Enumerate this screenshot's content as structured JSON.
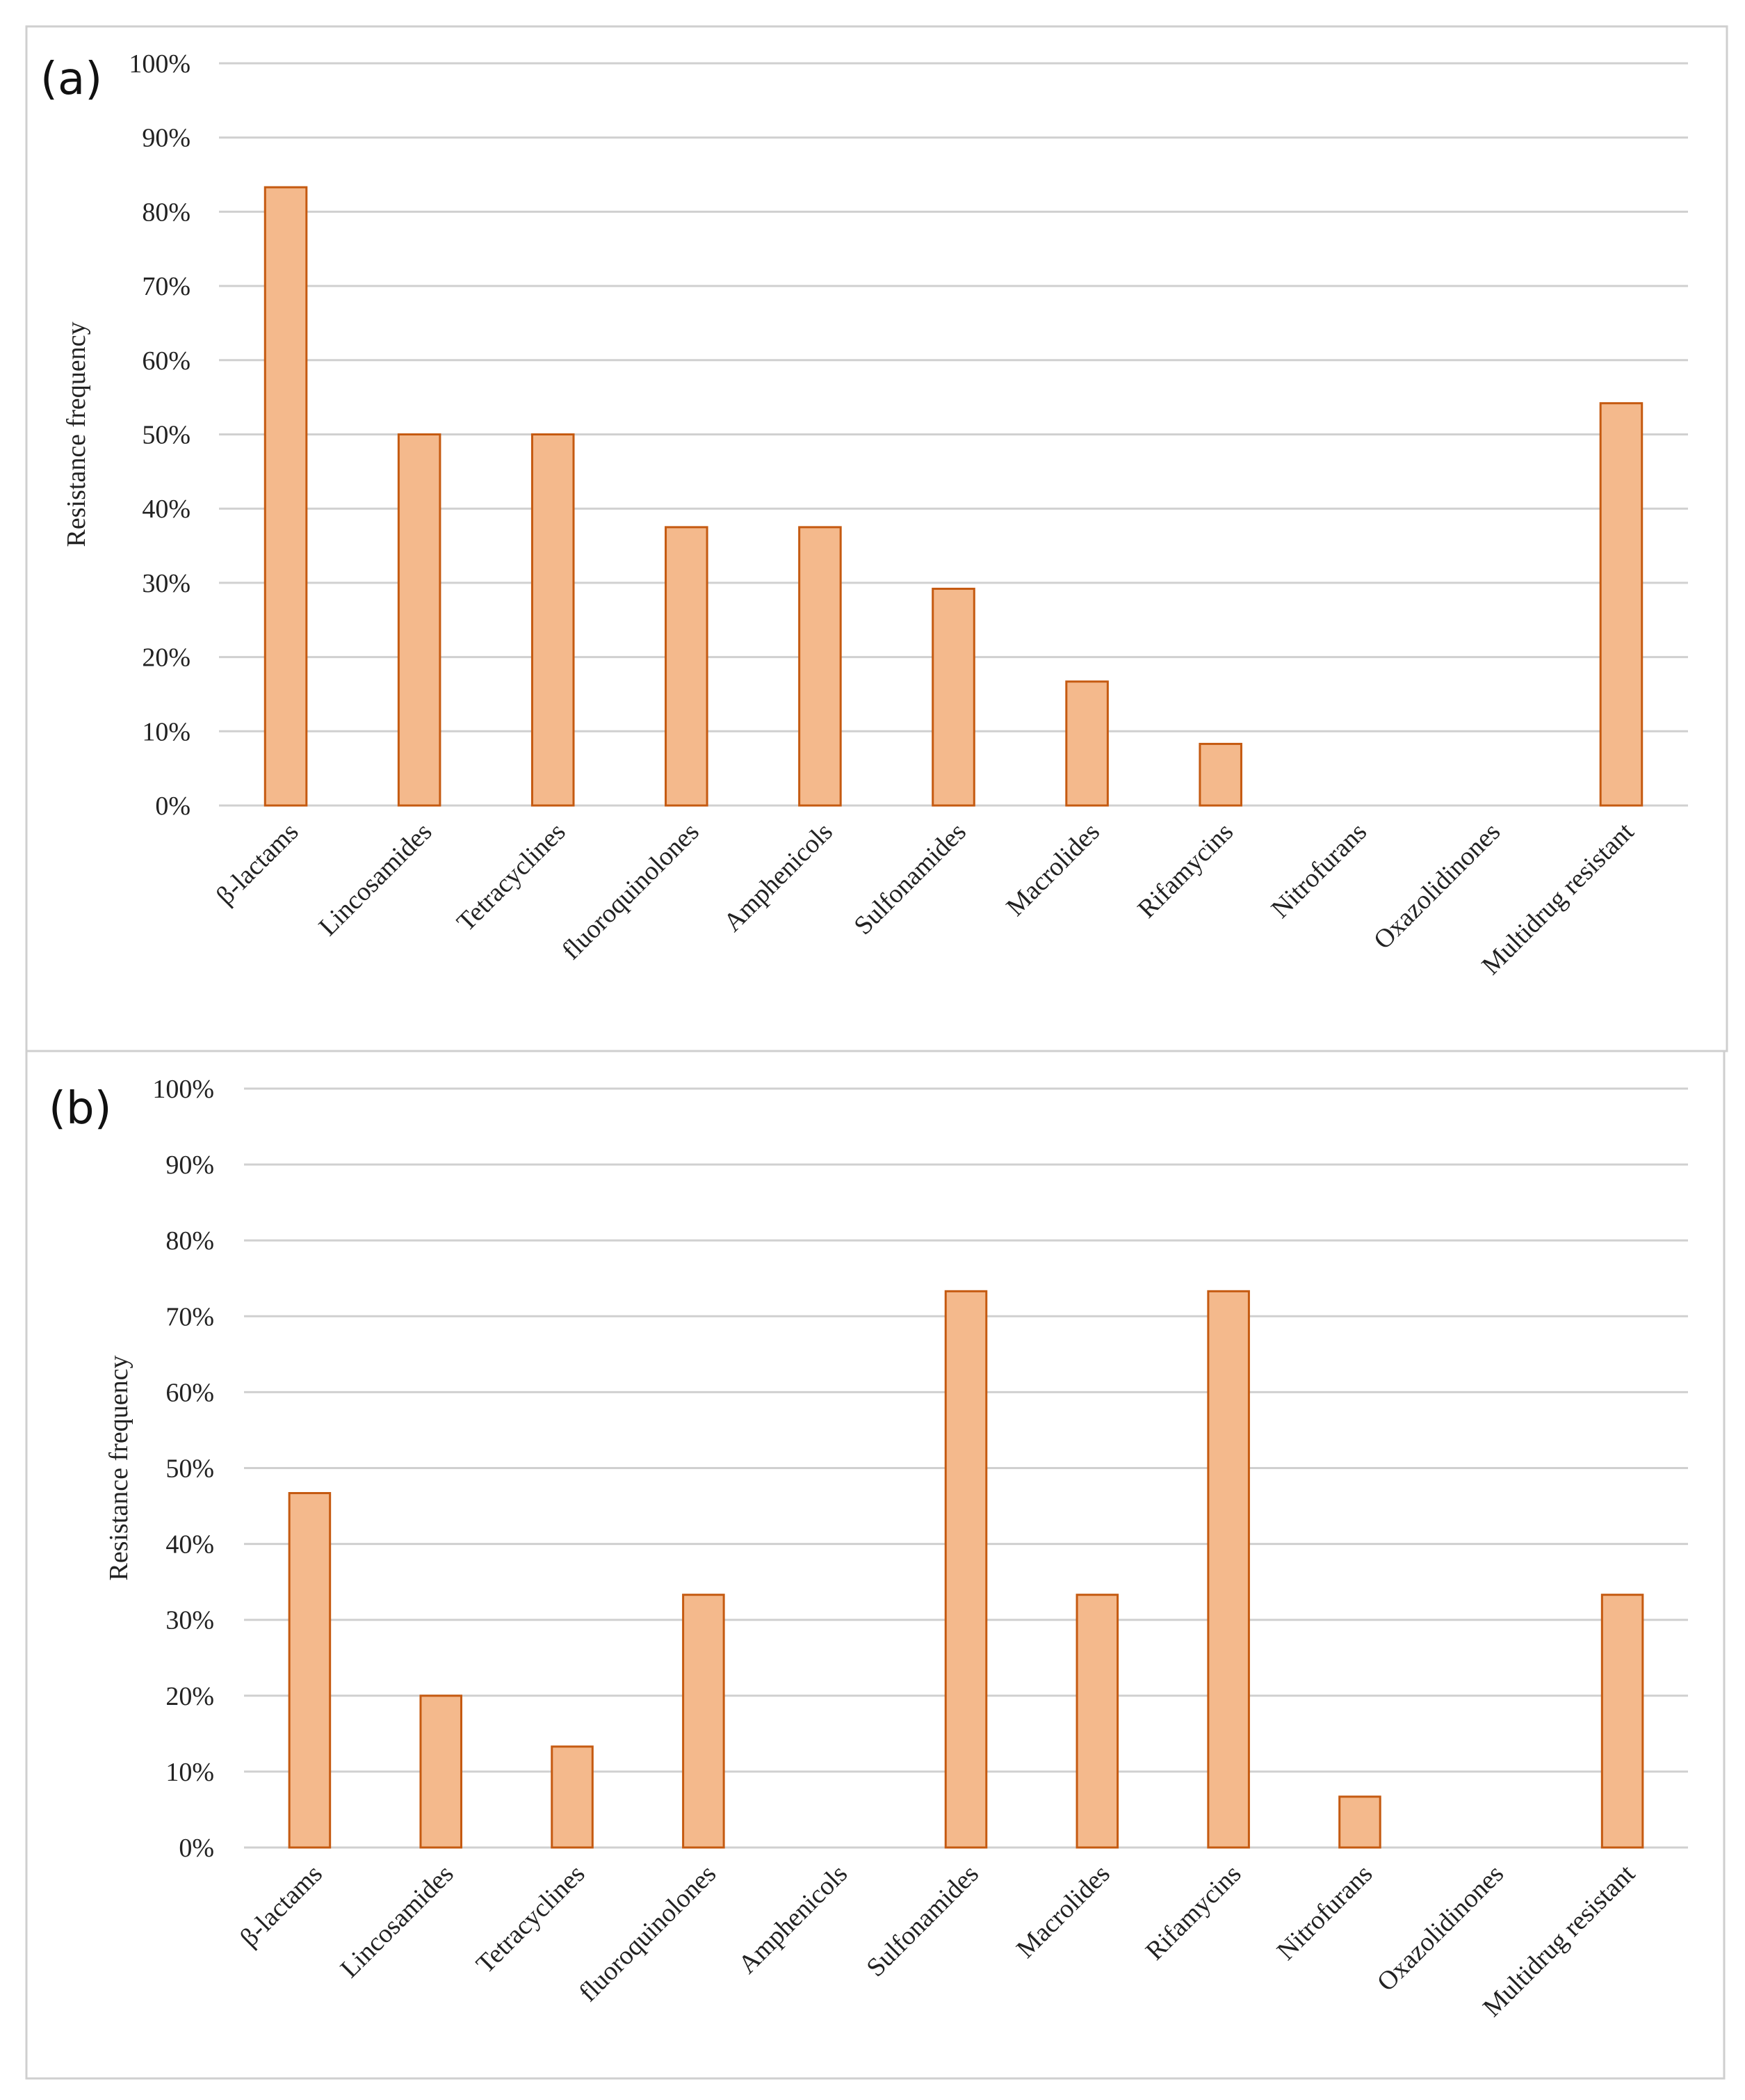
{
  "chart_data": [
    {
      "type": "bar",
      "panel_label": "(a)",
      "title": "",
      "xlabel": "",
      "ylabel": "Resistance frequency",
      "ylim": [
        0,
        100
      ],
      "yticks": [
        "0%",
        "10%",
        "20%",
        "30%",
        "40%",
        "50%",
        "60%",
        "70%",
        "80%",
        "90%",
        "100%"
      ],
      "grid": true,
      "categories": [
        "β-lactams",
        "Lincosamides",
        "Tetracyclines",
        "fluoroquinolones",
        "Amphenicols",
        "Sulfonamides",
        "Macrolides",
        "Rifamycins",
        "Nitrofurans",
        "Oxazolidinones",
        "Multidrug resistant"
      ],
      "values": [
        83.3,
        50.0,
        50.0,
        37.5,
        37.5,
        29.2,
        16.7,
        8.3,
        0,
        0,
        54.2
      ]
    },
    {
      "type": "bar",
      "panel_label": "(b)",
      "title": "",
      "xlabel": "",
      "ylabel": "Resistance frequency",
      "ylim": [
        0,
        100
      ],
      "yticks": [
        "0%",
        "10%",
        "20%",
        "30%",
        "40%",
        "50%",
        "60%",
        "70%",
        "80%",
        "90%",
        "100%"
      ],
      "grid": true,
      "categories": [
        "β-lactams",
        "Lincosamides",
        "Tetracyclines",
        "fluoroquinolones",
        "Amphenicols",
        "Sulfonamides",
        "Macrolides",
        "Rifamycins",
        "Nitrofurans",
        "Oxazolidinones",
        "Multidrug resistant"
      ],
      "values": [
        46.7,
        20.0,
        13.3,
        33.3,
        0,
        73.3,
        33.3,
        73.3,
        6.7,
        0,
        33.3
      ]
    }
  ],
  "colors": {
    "bar_fill": "#F4B98C",
    "bar_stroke": "#C55A11",
    "grid": "#D0D0D0",
    "frame": "#CFCFCF"
  }
}
